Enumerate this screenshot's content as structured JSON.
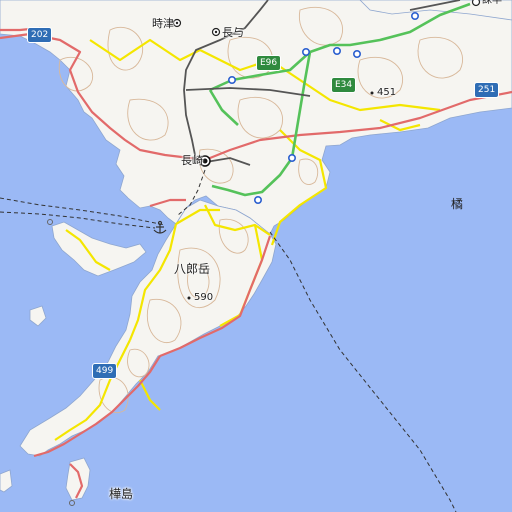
{
  "map": {
    "colors": {
      "sea": "#9bb9f5",
      "land": "#f6f5f1",
      "contour": "#d8b89a",
      "national_road": "#e26a6a",
      "prefectural_road": "#f4e600",
      "expressway": "#55c25a",
      "railway": "#555555",
      "ferry": "#333333"
    },
    "places": [
      {
        "id": "tokitsu",
        "name": "時津"
      },
      {
        "id": "nagayo",
        "name": "長与"
      },
      {
        "id": "nagasaki",
        "name": "長崎"
      },
      {
        "id": "hachiro",
        "name": "八郎岳"
      },
      {
        "id": "kabashima",
        "name": "樺島"
      },
      {
        "id": "tachibana",
        "name": "橘"
      },
      {
        "id": "isahaya",
        "name": "諫早"
      }
    ],
    "peaks": [
      {
        "id": "peak-451",
        "elevation": "451"
      },
      {
        "id": "peak-590",
        "elevation": "590"
      }
    ],
    "route_shields": [
      {
        "id": "r202",
        "label": "202",
        "kind": "national"
      },
      {
        "id": "r251",
        "label": "251",
        "kind": "national"
      },
      {
        "id": "r499",
        "label": "499",
        "kind": "national"
      },
      {
        "id": "e96",
        "label": "E96",
        "kind": "expressway"
      },
      {
        "id": "e34",
        "label": "E34",
        "kind": "expressway"
      }
    ],
    "symbols": [
      {
        "id": "port",
        "icon": "anchor-icon"
      }
    ]
  }
}
